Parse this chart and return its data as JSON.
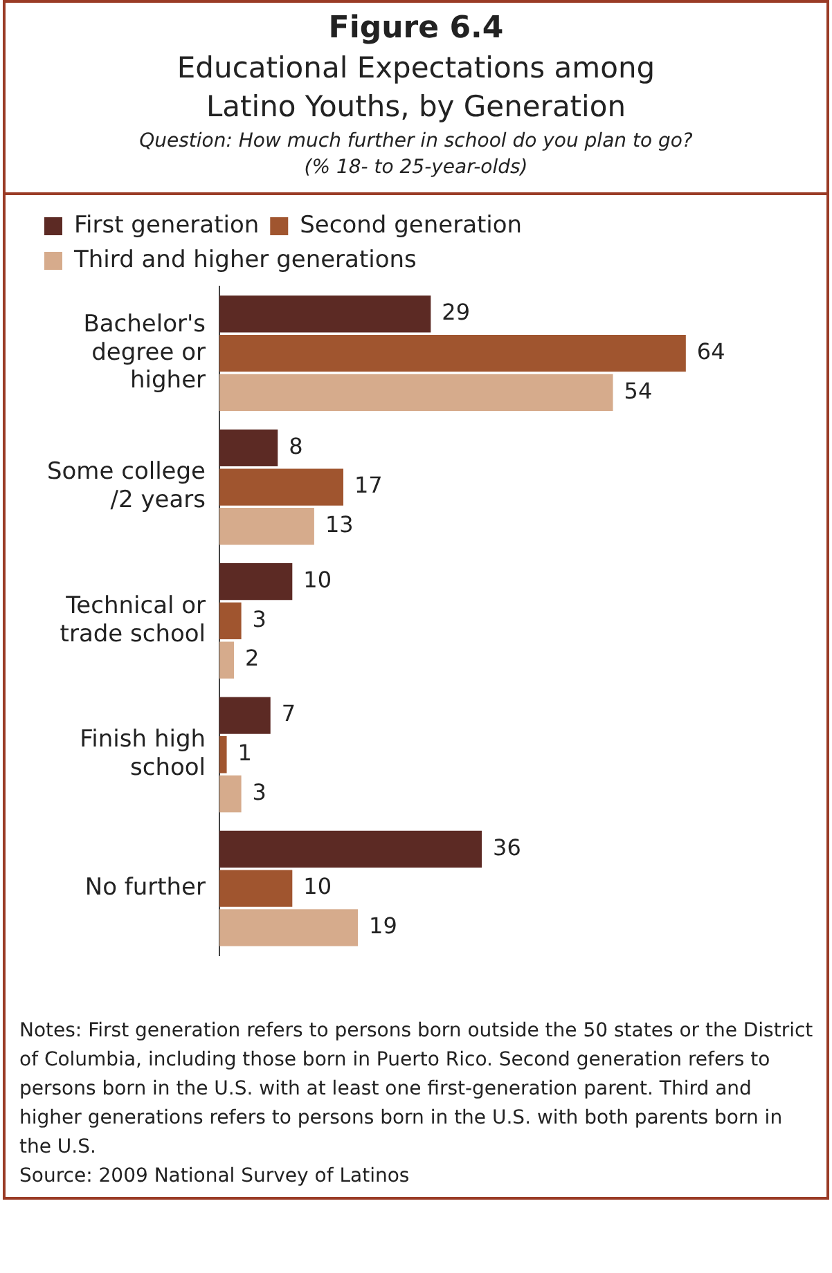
{
  "chart_data": {
    "type": "bar",
    "orientation": "horizontal",
    "title": "Figure 6.4",
    "subtitle": "Educational Expectations among Latino Youths, by Generation",
    "annotations": [
      "Question: How much further in school do you plan to go?",
      "(% 18- to 25-year-olds)",
      "Notes: First generation refers to persons born outside the 50 states or the District of Columbia, including those born in Puerto Rico. Second generation refers to persons born in the U.S. with at least one first-generation parent. Third and higher generations refers to persons born in the U.S. with both parents born in the U.S.",
      "Source: 2009 National Survey of Latinos"
    ],
    "categories": [
      "Bachelor's degree or higher",
      "Some college /2 years",
      "Technical or trade school",
      "Finish high school",
      "No further"
    ],
    "series": [
      {
        "name": "First generation",
        "color": "#5c2a24",
        "values": [
          29,
          8,
          10,
          7,
          36
        ]
      },
      {
        "name": "Second generation",
        "color": "#a0552f",
        "values": [
          64,
          17,
          3,
          1,
          10
        ]
      },
      {
        "name": "Third and higher generations",
        "color": "#d6ab8c",
        "values": [
          54,
          13,
          2,
          3,
          19
        ]
      }
    ],
    "tick_labels": "y",
    "grid": false,
    "legend": "top left",
    "data_labels": true
  }
}
